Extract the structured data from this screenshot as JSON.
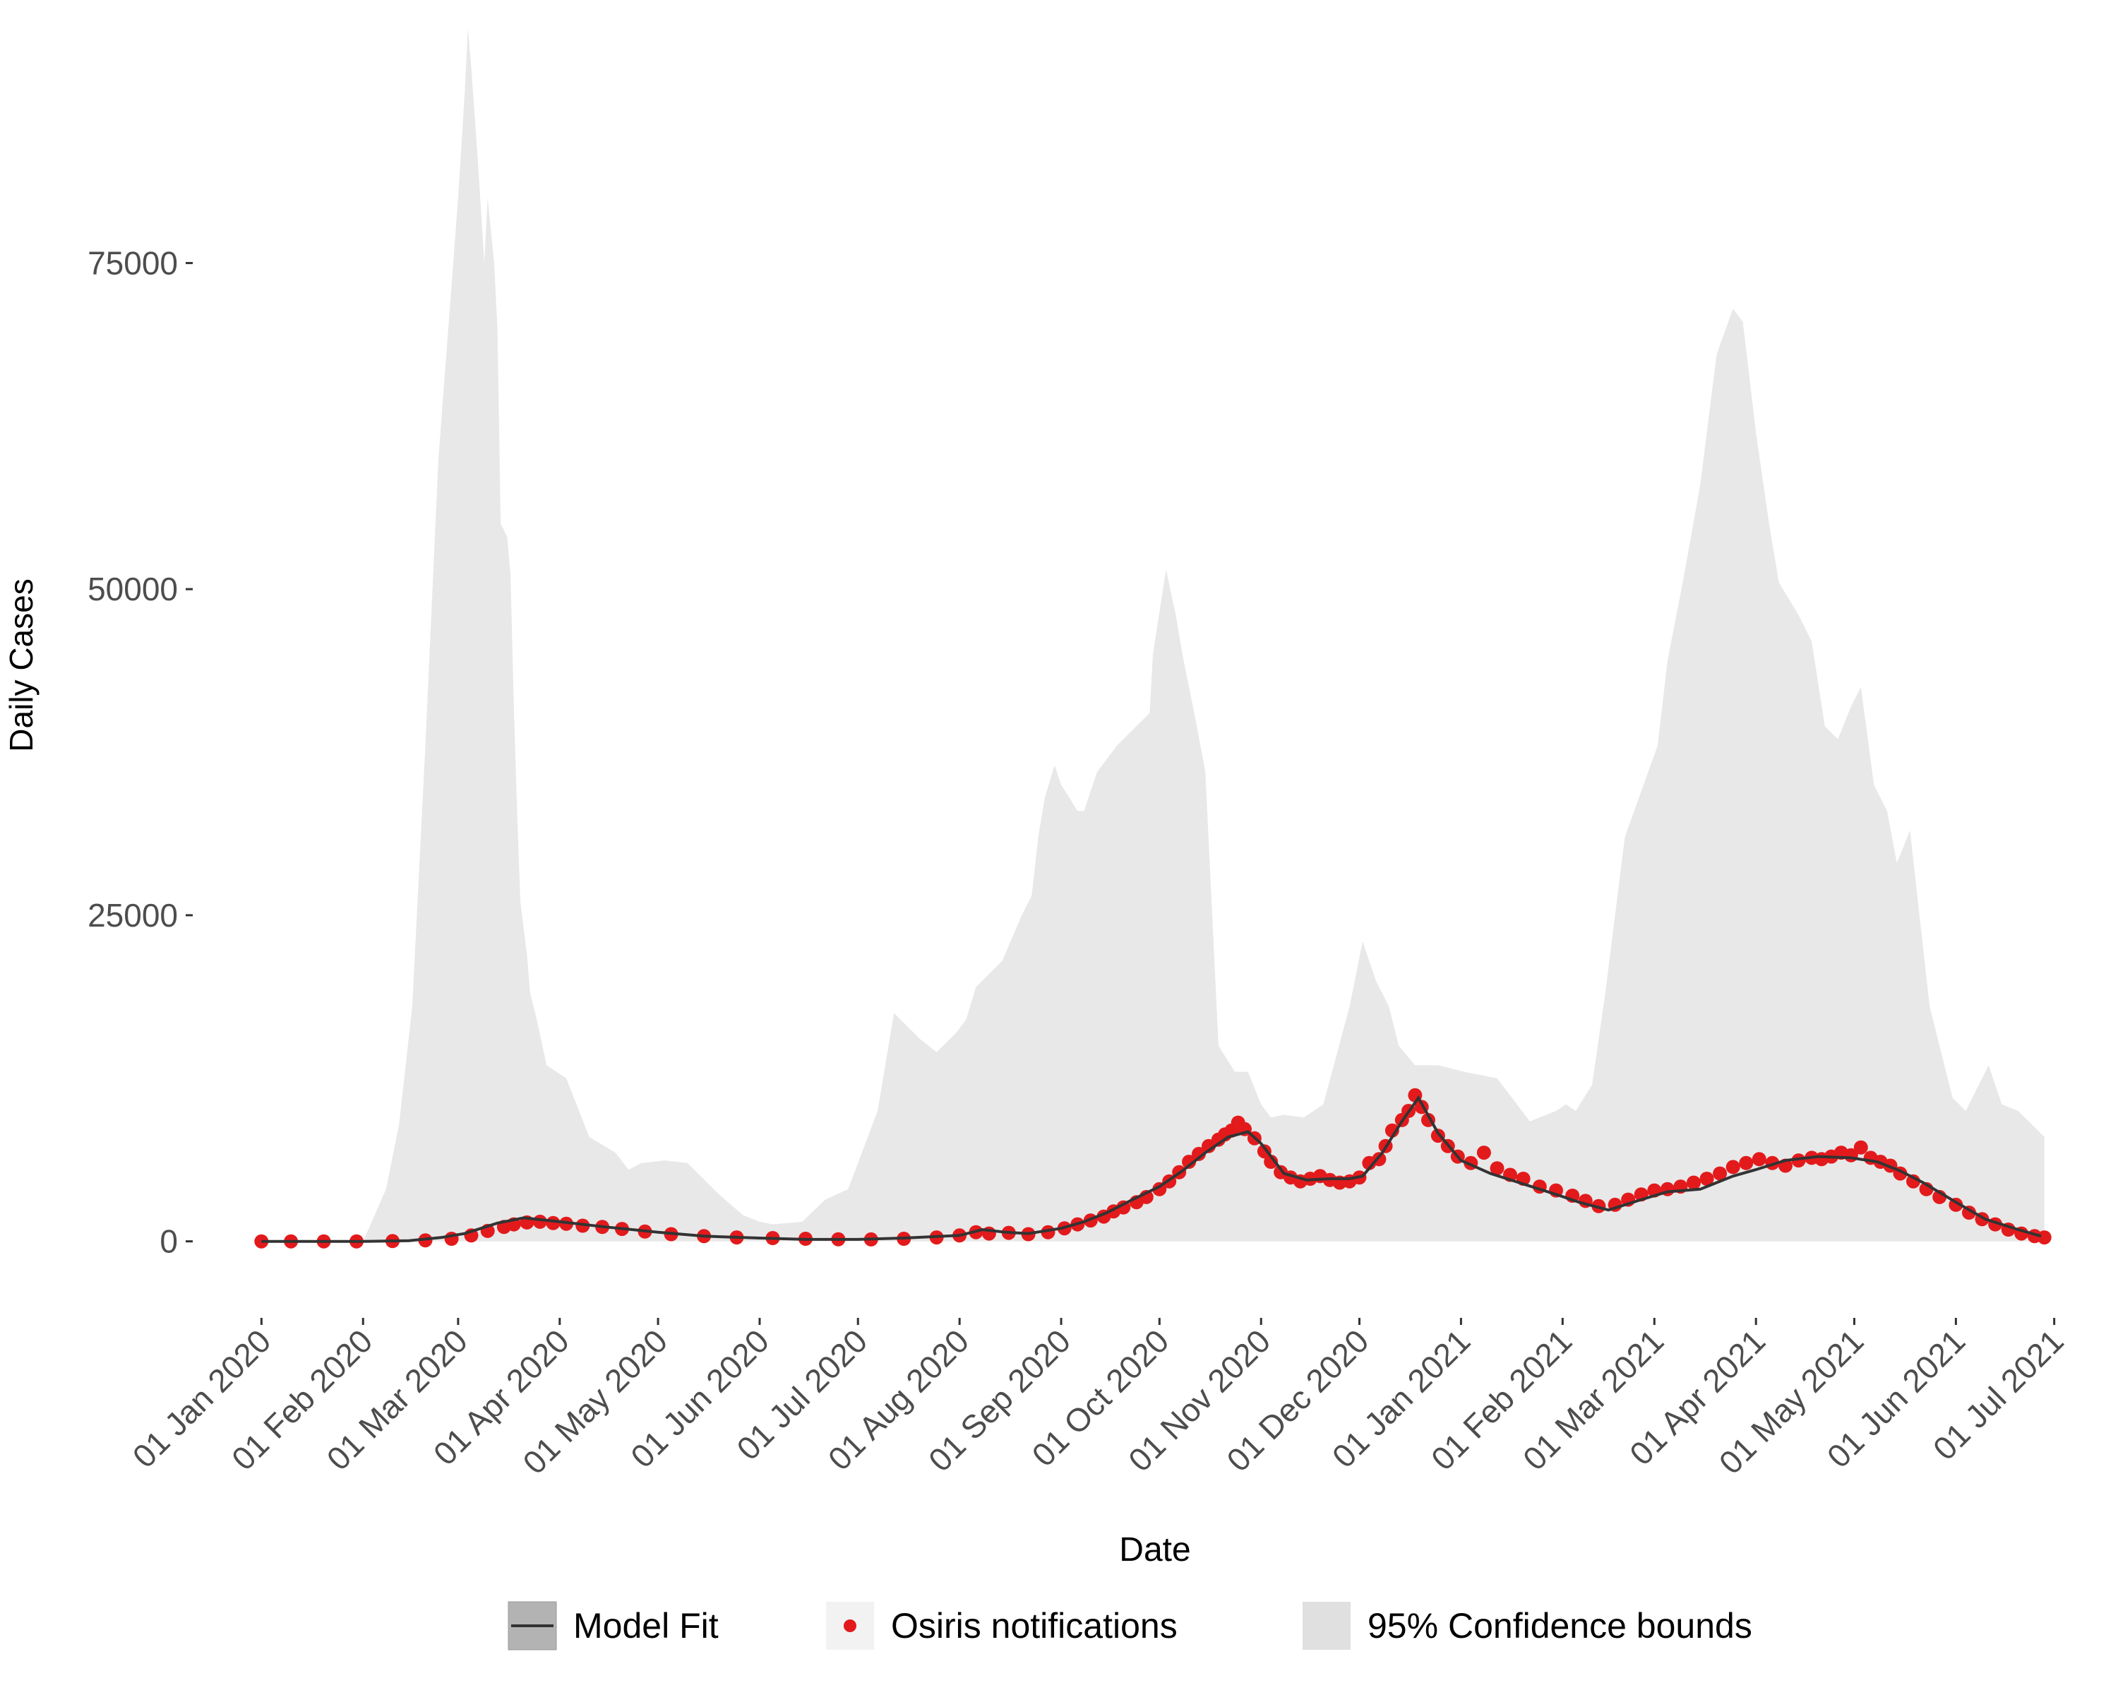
{
  "chart_data": {
    "type": "line",
    "title": "",
    "xlabel": "Date",
    "ylabel": "Daily Cases",
    "x_range": [
      "2020-01-01",
      "2021-07-01"
    ],
    "ylim": [
      -5000,
      93000
    ],
    "y_ticks": [
      0,
      25000,
      50000,
      75000
    ],
    "y_tick_labels": [
      "0",
      "25000",
      "50000",
      "75000"
    ],
    "x_ticks": [
      "2020-01-01",
      "2020-02-01",
      "2020-03-01",
      "2020-04-01",
      "2020-05-01",
      "2020-06-01",
      "2020-07-01",
      "2020-08-01",
      "2020-09-01",
      "2020-10-01",
      "2020-11-01",
      "2020-12-01",
      "2021-01-01",
      "2021-02-01",
      "2021-03-01",
      "2021-04-01",
      "2021-05-01",
      "2021-06-01",
      "2021-07-01"
    ],
    "x_tick_labels": [
      "01 Jan 2020",
      "01 Feb 2020",
      "01 Mar 2020",
      "01 Apr 2020",
      "01 May 2020",
      "01 Jun 2020",
      "01 Jul 2020",
      "01 Aug 2020",
      "01 Sep 2020",
      "01 Oct 2020",
      "01 Nov 2020",
      "01 Dec 2020",
      "01 Jan 2021",
      "01 Feb 2021",
      "01 Mar 2021",
      "01 Apr 2021",
      "01 May 2021",
      "01 Jun 2021",
      "01 Jul 2021"
    ],
    "grid": false,
    "legend_position": "bottom",
    "colors": {
      "model_fit": "#333333",
      "osiris": "#e31a1c",
      "confidence": "#e8e8e8"
    },
    "series": [
      {
        "name": "95% Confidence bounds",
        "type": "area",
        "x": [
          "2020-01-01",
          "2020-02-01",
          "2020-02-08",
          "2020-02-12",
          "2020-02-16",
          "2020-02-20",
          "2020-02-24",
          "2020-02-27",
          "2020-03-01",
          "2020-03-03",
          "2020-03-04",
          "2020-03-05",
          "2020-03-07",
          "2020-03-09",
          "2020-03-10",
          "2020-03-12",
          "2020-03-13",
          "2020-03-14",
          "2020-03-16",
          "2020-03-17",
          "2020-03-18",
          "2020-03-19",
          "2020-03-20",
          "2020-03-22",
          "2020-03-23",
          "2020-03-25",
          "2020-03-28",
          "2020-04-03",
          "2020-04-10",
          "2020-04-18",
          "2020-04-22",
          "2020-04-26",
          "2020-05-03",
          "2020-05-10",
          "2020-05-20",
          "2020-05-27",
          "2020-06-01",
          "2020-06-05",
          "2020-06-14",
          "2020-06-21",
          "2020-06-28",
          "2020-07-07",
          "2020-07-12",
          "2020-07-20",
          "2020-07-25",
          "2020-07-31",
          "2020-08-03",
          "2020-08-06",
          "2020-08-14",
          "2020-08-20",
          "2020-08-23",
          "2020-08-25",
          "2020-08-27",
          "2020-08-30",
          "2020-09-01",
          "2020-09-06",
          "2020-09-08",
          "2020-09-12",
          "2020-09-18",
          "2020-09-24",
          "2020-09-28",
          "2020-09-29",
          "2020-10-03",
          "2020-10-06",
          "2020-10-08",
          "2020-10-12",
          "2020-10-15",
          "2020-10-19",
          "2020-10-24",
          "2020-10-28",
          "2020-11-01",
          "2020-11-04",
          "2020-11-08",
          "2020-11-14",
          "2020-11-20",
          "2020-11-28",
          "2020-12-02",
          "2020-12-06",
          "2020-12-10",
          "2020-12-13",
          "2020-12-18",
          "2020-12-25",
          "2021-01-02",
          "2021-01-12",
          "2021-01-22",
          "2021-01-30",
          "2021-02-02",
          "2021-02-05",
          "2021-02-10",
          "2021-02-14",
          "2021-02-20",
          "2021-02-25",
          "2021-03-02",
          "2021-03-05",
          "2021-03-10",
          "2021-03-15",
          "2021-03-20",
          "2021-03-25",
          "2021-03-28",
          "2021-04-01",
          "2021-04-05",
          "2021-04-08",
          "2021-04-14",
          "2021-04-18",
          "2021-04-22",
          "2021-04-26",
          "2021-04-30",
          "2021-05-03",
          "2021-05-07",
          "2021-05-11",
          "2021-05-14",
          "2021-05-18",
          "2021-05-24",
          "2021-05-31",
          "2021-06-04",
          "2021-06-07",
          "2021-06-11",
          "2021-06-15",
          "2021-06-20",
          "2021-06-24",
          "2021-06-28"
        ],
        "lower": [
          0,
          0,
          0,
          0,
          0,
          0,
          0,
          0,
          0,
          0,
          0,
          0,
          0,
          0,
          0,
          0,
          0,
          0,
          0,
          0,
          0,
          0,
          0,
          0,
          0,
          0,
          0,
          0,
          0,
          0,
          0,
          0,
          0,
          0,
          0,
          0,
          0,
          0,
          0,
          0,
          0,
          0,
          0,
          0,
          0,
          0,
          0,
          0,
          0,
          0,
          0,
          0,
          0,
          0,
          0,
          0,
          0,
          0,
          0,
          0,
          0,
          0,
          0,
          0,
          0,
          0,
          0,
          0,
          0,
          0,
          0,
          0,
          0,
          0,
          0,
          0,
          0,
          0,
          0,
          0,
          0,
          0,
          0,
          0,
          0,
          0,
          0,
          0,
          0,
          0,
          0,
          0,
          0,
          0,
          0,
          0,
          0,
          0,
          0,
          0,
          0,
          0,
          0,
          0,
          0,
          0,
          0,
          0,
          0,
          0,
          0,
          0,
          0,
          0,
          0,
          0,
          0,
          0,
          0,
          0,
          0
        ],
        "upper": [
          0,
          0,
          4000,
          9000,
          18000,
          38000,
          60000,
          70000,
          80000,
          88000,
          93000,
          90000,
          83000,
          75000,
          80000,
          75000,
          70000,
          55000,
          54000,
          51000,
          41000,
          33000,
          26000,
          22000,
          19000,
          17000,
          13500,
          12500,
          8000,
          6800,
          5500,
          6000,
          6200,
          6000,
          3500,
          2000,
          1500,
          1300,
          1500,
          3200,
          4000,
          10000,
          17500,
          15500,
          14500,
          16000,
          17000,
          19500,
          21500,
          25000,
          26500,
          31000,
          34000,
          36500,
          35000,
          33000,
          33000,
          36000,
          38000,
          39500,
          40500,
          45000,
          51500,
          48000,
          45000,
          40000,
          36000,
          15000,
          13000,
          13000,
          10500,
          9500,
          9700,
          9500,
          10500,
          18000,
          23000,
          20000,
          18000,
          15000,
          13500,
          13500,
          13000,
          12500,
          9200,
          10000,
          10500,
          10000,
          12000,
          19000,
          31000,
          34500,
          38000,
          44500,
          51000,
          58000,
          68000,
          71500,
          70500,
          62000,
          55000,
          50500,
          48000,
          46000,
          39500,
          38500,
          41000,
          42500,
          35000,
          33000,
          29000,
          31500,
          18000,
          11000,
          10000,
          11500,
          13500,
          10500,
          10000,
          9000,
          8000
        ]
      },
      {
        "name": "Model Fit",
        "type": "line",
        "x": [
          "2020-01-01",
          "2020-02-01",
          "2020-02-15",
          "2020-02-25",
          "2020-03-03",
          "2020-03-08",
          "2020-03-13",
          "2020-03-21",
          "2020-04-01",
          "2020-04-15",
          "2020-05-01",
          "2020-05-15",
          "2020-06-01",
          "2020-06-15",
          "2020-07-01",
          "2020-07-15",
          "2020-08-01",
          "2020-08-08",
          "2020-08-15",
          "2020-08-22",
          "2020-09-01",
          "2020-09-08",
          "2020-09-15",
          "2020-09-22",
          "2020-10-01",
          "2020-10-08",
          "2020-10-15",
          "2020-10-22",
          "2020-10-25",
          "2020-10-28",
          "2020-11-01",
          "2020-11-08",
          "2020-11-15",
          "2020-11-22",
          "2020-11-28",
          "2020-12-02",
          "2020-12-08",
          "2020-12-14",
          "2020-12-19",
          "2020-12-25",
          "2021-01-01",
          "2021-01-10",
          "2021-01-20",
          "2021-01-30",
          "2021-02-06",
          "2021-02-15",
          "2021-02-25",
          "2021-03-05",
          "2021-03-15",
          "2021-03-25",
          "2021-04-01",
          "2021-04-10",
          "2021-04-20",
          "2021-04-30",
          "2021-05-08",
          "2021-05-15",
          "2021-05-22",
          "2021-06-01",
          "2021-06-10",
          "2021-06-20",
          "2021-06-27"
        ],
        "y": [
          0,
          0,
          50,
          300,
          600,
          1000,
          1400,
          1800,
          1500,
          1100,
          700,
          400,
          250,
          150,
          150,
          250,
          450,
          900,
          700,
          600,
          1000,
          1500,
          2200,
          3100,
          4200,
          5400,
          6800,
          8000,
          8200,
          8400,
          7500,
          5200,
          4700,
          4800,
          4800,
          5000,
          6800,
          9200,
          11000,
          8300,
          6200,
          5200,
          4400,
          3600,
          3000,
          2400,
          3200,
          3800,
          4000,
          5000,
          5500,
          6200,
          6500,
          6400,
          6100,
          5400,
          4500,
          3000,
          1700,
          900,
          400
        ]
      },
      {
        "name": "Osiris notifications",
        "type": "scatter",
        "x": [
          "2020-01-01",
          "2020-01-10",
          "2020-01-20",
          "2020-01-30",
          "2020-02-10",
          "2020-02-20",
          "2020-02-28",
          "2020-03-05",
          "2020-03-10",
          "2020-03-15",
          "2020-03-18",
          "2020-03-22",
          "2020-03-26",
          "2020-03-30",
          "2020-04-03",
          "2020-04-08",
          "2020-04-14",
          "2020-04-20",
          "2020-04-27",
          "2020-05-05",
          "2020-05-15",
          "2020-05-25",
          "2020-06-05",
          "2020-06-15",
          "2020-06-25",
          "2020-07-05",
          "2020-07-15",
          "2020-07-25",
          "2020-08-01",
          "2020-08-06",
          "2020-08-10",
          "2020-08-16",
          "2020-08-22",
          "2020-08-28",
          "2020-09-02",
          "2020-09-06",
          "2020-09-10",
          "2020-09-14",
          "2020-09-17",
          "2020-09-20",
          "2020-09-24",
          "2020-09-27",
          "2020-10-01",
          "2020-10-04",
          "2020-10-07",
          "2020-10-10",
          "2020-10-13",
          "2020-10-16",
          "2020-10-19",
          "2020-10-21",
          "2020-10-23",
          "2020-10-25",
          "2020-10-27",
          "2020-10-30",
          "2020-11-02",
          "2020-11-04",
          "2020-11-07",
          "2020-11-10",
          "2020-11-13",
          "2020-11-16",
          "2020-11-19",
          "2020-11-22",
          "2020-11-25",
          "2020-11-28",
          "2020-12-01",
          "2020-12-04",
          "2020-12-07",
          "2020-12-09",
          "2020-12-11",
          "2020-12-14",
          "2020-12-16",
          "2020-12-18",
          "2020-12-20",
          "2020-12-22",
          "2020-12-25",
          "2020-12-28",
          "2020-12-31",
          "2021-01-04",
          "2021-01-08",
          "2021-01-12",
          "2021-01-16",
          "2021-01-20",
          "2021-01-25",
          "2021-01-30",
          "2021-02-04",
          "2021-02-08",
          "2021-02-12",
          "2021-02-17",
          "2021-02-21",
          "2021-02-25",
          "2021-03-01",
          "2021-03-05",
          "2021-03-09",
          "2021-03-13",
          "2021-03-17",
          "2021-03-21",
          "2021-03-25",
          "2021-03-29",
          "2021-04-02",
          "2021-04-06",
          "2021-04-10",
          "2021-04-14",
          "2021-04-18",
          "2021-04-21",
          "2021-04-24",
          "2021-04-27",
          "2021-04-30",
          "2021-05-03",
          "2021-05-06",
          "2021-05-09",
          "2021-05-12",
          "2021-05-15",
          "2021-05-19",
          "2021-05-23",
          "2021-05-27",
          "2021-06-01",
          "2021-06-05",
          "2021-06-09",
          "2021-06-13",
          "2021-06-17",
          "2021-06-21",
          "2021-06-25",
          "2021-06-28"
        ],
        "y": [
          0,
          0,
          0,
          0,
          20,
          80,
          200,
          450,
          800,
          1100,
          1300,
          1450,
          1500,
          1400,
          1350,
          1200,
          1100,
          950,
          750,
          550,
          400,
          300,
          250,
          200,
          160,
          150,
          200,
          300,
          450,
          700,
          600,
          650,
          550,
          700,
          1000,
          1300,
          1600,
          1900,
          2300,
          2600,
          3000,
          3400,
          4000,
          4600,
          5300,
          6100,
          6700,
          7300,
          7800,
          8200,
          8500,
          9100,
          8600,
          7900,
          6900,
          6100,
          5300,
          4900,
          4600,
          4800,
          5000,
          4700,
          4500,
          4600,
          4900,
          6000,
          6300,
          7300,
          8500,
          9300,
          10000,
          11200,
          10300,
          9300,
          8100,
          7300,
          6500,
          6000,
          6800,
          5600,
          5100,
          4800,
          4200,
          3900,
          3500,
          3100,
          2700,
          2800,
          3200,
          3600,
          3900,
          4000,
          4200,
          4500,
          4800,
          5200,
          5700,
          6000,
          6300,
          6000,
          5800,
          6200,
          6400,
          6300,
          6500,
          6800,
          6600,
          7200,
          6400,
          6100,
          5800,
          5200,
          4600,
          4000,
          3400,
          2800,
          2200,
          1700,
          1300,
          900,
          600,
          400,
          300
        ]
      }
    ],
    "legend": [
      {
        "key": "model_fit",
        "label": "Model Fit"
      },
      {
        "key": "osiris",
        "label": "Osiris notifications"
      },
      {
        "key": "confidence",
        "label": "95% Confidence bounds"
      }
    ]
  }
}
